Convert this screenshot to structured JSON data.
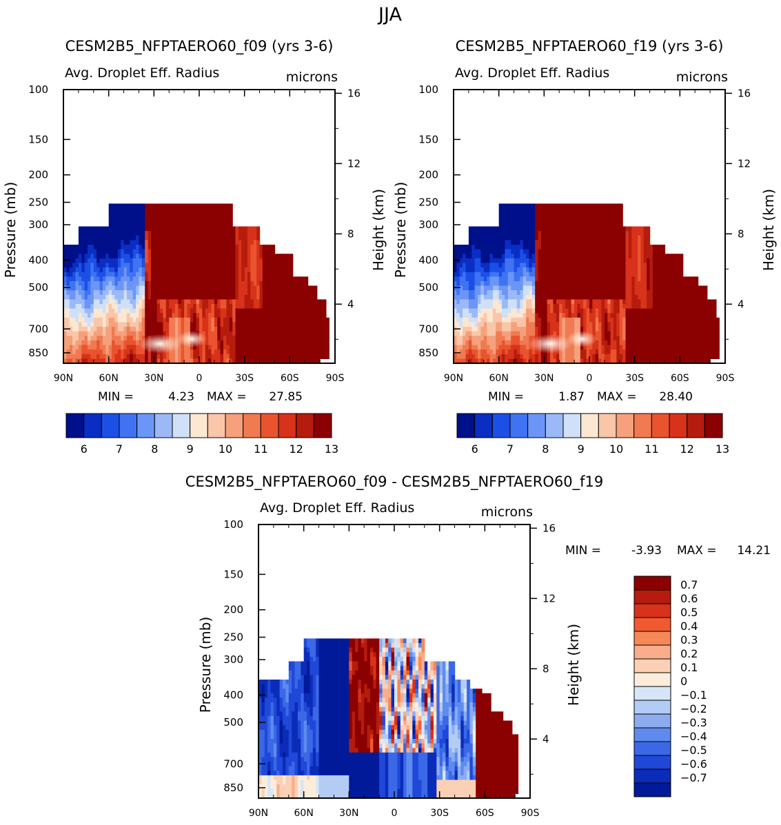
{
  "figure": {
    "title": "JJA"
  },
  "panels": [
    {
      "id": "f09",
      "title": "CESM2B5_NFPTAERO60_f09 (yrs 3-6)",
      "subtitle": "Avg. Droplet Eff. Radius",
      "units": "microns",
      "min_label": "MIN =",
      "min_value": "4.23",
      "max_label": "MAX =",
      "max_value": "27.85"
    },
    {
      "id": "f19",
      "title": "CESM2B5_NFPTAERO60_f19 (yrs 3-6)",
      "subtitle": "Avg. Droplet Eff. Radius",
      "units": "microns",
      "min_label": "MIN =",
      "min_value": "1.87",
      "max_label": "MAX =",
      "max_value": "28.40"
    },
    {
      "id": "diff",
      "title": "CESM2B5_NFPTAERO60_f09 - CESM2B5_NFPTAERO60_f19",
      "subtitle": "Avg. Droplet Eff. Radius",
      "units": "microns",
      "min_label": "MIN =",
      "min_value": "-3.93",
      "max_label": "MAX =",
      "max_value": "14.21"
    }
  ],
  "chart_data": [
    {
      "type": "heatmap",
      "panel": "f09",
      "xlabel": "",
      "ylabel": "Pressure (mb)",
      "y2label": "Height (km)",
      "x_ticks": [
        "90N",
        "60N",
        "30N",
        "0",
        "30S",
        "60S",
        "90S"
      ],
      "x_tick_values": [
        90,
        60,
        30,
        0,
        -30,
        -60,
        -90
      ],
      "xlim": [
        90,
        -90
      ],
      "y_ticks": [
        100,
        150,
        200,
        250,
        300,
        400,
        500,
        700,
        850
      ],
      "y_scale": "log",
      "ylim": [
        100,
        925
      ],
      "y2_ticks": [
        16,
        12,
        8,
        4
      ],
      "colorbar_levels": [
        5.5,
        6,
        6.5,
        7,
        7.5,
        8,
        8.5,
        9,
        9.5,
        10,
        10.5,
        11,
        11.5,
        12,
        12.5,
        13,
        13.5
      ],
      "colorbar_labels": [
        "6",
        "7",
        "8",
        "9",
        "10",
        "11",
        "12",
        "13"
      ],
      "colors": [
        "#000f8a",
        "#0a2dc3",
        "#1c4fe6",
        "#3f73f2",
        "#6b96f7",
        "#9cb9f7",
        "#cfe0f8",
        "#fbe7d2",
        "#f9c6a9",
        "#f6a07c",
        "#f07a52",
        "#e9542e",
        "#d8321a",
        "#b51c0d",
        "#8b0000"
      ],
      "min": 4.23,
      "max": 27.85
    },
    {
      "type": "heatmap",
      "panel": "f19",
      "xlabel": "",
      "ylabel": "Pressure (mb)",
      "y2label": "Height (km)",
      "x_ticks": [
        "90N",
        "60N",
        "30N",
        "0",
        "30S",
        "60S",
        "90S"
      ],
      "x_tick_values": [
        90,
        60,
        30,
        0,
        -30,
        -60,
        -90
      ],
      "xlim": [
        90,
        -90
      ],
      "y_ticks": [
        100,
        150,
        200,
        250,
        300,
        400,
        500,
        700,
        850
      ],
      "y_scale": "log",
      "ylim": [
        100,
        925
      ],
      "y2_ticks": [
        16,
        12,
        8,
        4
      ],
      "colorbar_levels": [
        5.5,
        6,
        6.5,
        7,
        7.5,
        8,
        8.5,
        9,
        9.5,
        10,
        10.5,
        11,
        11.5,
        12,
        12.5,
        13,
        13.5
      ],
      "colorbar_labels": [
        "6",
        "7",
        "8",
        "9",
        "10",
        "11",
        "12",
        "13"
      ],
      "colors": [
        "#000f8a",
        "#0a2dc3",
        "#1c4fe6",
        "#3f73f2",
        "#6b96f7",
        "#9cb9f7",
        "#cfe0f8",
        "#fbe7d2",
        "#f9c6a9",
        "#f6a07c",
        "#f07a52",
        "#e9542e",
        "#d8321a",
        "#b51c0d",
        "#8b0000"
      ],
      "min": 1.87,
      "max": 28.4
    },
    {
      "type": "heatmap",
      "panel": "diff",
      "xlabel": "",
      "ylabel": "Pressure (mb)",
      "y2label": "Height (km)",
      "x_ticks": [
        "90N",
        "60N",
        "30N",
        "0",
        "30S",
        "60S",
        "90S"
      ],
      "x_tick_values": [
        90,
        60,
        30,
        0,
        -30,
        -60,
        -90
      ],
      "xlim": [
        90,
        -90
      ],
      "y_ticks": [
        100,
        150,
        200,
        250,
        300,
        400,
        500,
        700,
        850
      ],
      "y_scale": "log",
      "ylim": [
        100,
        925
      ],
      "y2_ticks": [
        16,
        12,
        8,
        4
      ],
      "colorbar_levels": [
        -0.7,
        -0.6,
        -0.5,
        -0.4,
        -0.3,
        -0.2,
        -0.1,
        0,
        0.1,
        0.2,
        0.3,
        0.4,
        0.5,
        0.6,
        0.7
      ],
      "colorbar_labels": [
        "0.7",
        "0.6",
        "0.5",
        "0.4",
        "0.3",
        "0.2",
        "0.1",
        "0",
        "−0.1",
        "−0.2",
        "−0.3",
        "−0.4",
        "−0.5",
        "−0.6",
        "−0.7"
      ],
      "colors": [
        "#8b0000",
        "#b51c0d",
        "#d8321a",
        "#f05a2e",
        "#f68858",
        "#f9ad8a",
        "#fbd0b4",
        "#fcecdb",
        "#d7e6f7",
        "#b2ccf3",
        "#8badf0",
        "#5f8bee",
        "#3a68e6",
        "#1f48d8",
        "#0b2cb8",
        "#001a99"
      ],
      "min": -3.93,
      "max": 14.21
    }
  ]
}
